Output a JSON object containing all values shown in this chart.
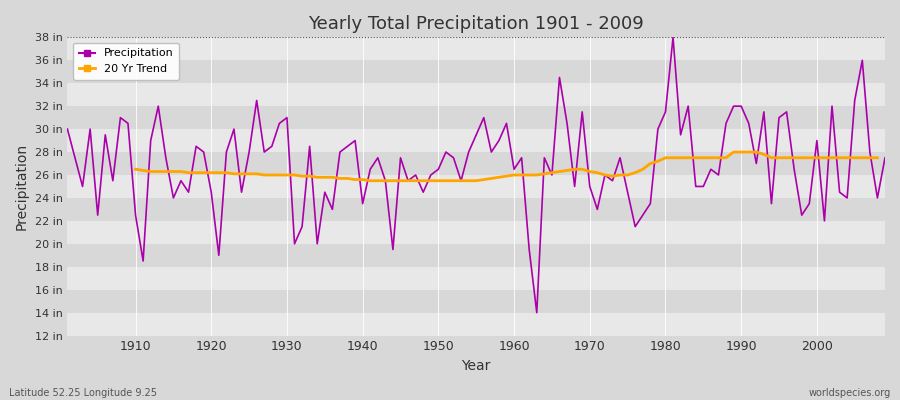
{
  "title": "Yearly Total Precipitation 1901 - 2009",
  "xlabel": "Year",
  "ylabel": "Precipitation",
  "fig_bg_color": "#d8d8d8",
  "plot_bg_color": "#e0e0e0",
  "band_color_light": "#e8e8e8",
  "band_color_dark": "#d8d8d8",
  "precip_color": "#aa00aa",
  "trend_color": "#FFA500",
  "ylim": [
    12,
    38
  ],
  "yticks": [
    12,
    14,
    16,
    18,
    20,
    22,
    24,
    26,
    28,
    30,
    32,
    34,
    36,
    38
  ],
  "ytick_labels": [
    "12 in",
    "14 in",
    "16 in",
    "18 in",
    "20 in",
    "22 in",
    "24 in",
    "26 in",
    "28 in",
    "30 in",
    "32 in",
    "34 in",
    "36 in",
    "38 in"
  ],
  "xticks": [
    1910,
    1920,
    1930,
    1940,
    1950,
    1960,
    1970,
    1980,
    1990,
    2000
  ],
  "footer_left": "Latitude 52.25 Longitude 9.25",
  "footer_right": "worldspecies.org",
  "years": [
    1901,
    1902,
    1903,
    1904,
    1905,
    1906,
    1907,
    1908,
    1909,
    1910,
    1911,
    1912,
    1913,
    1914,
    1915,
    1916,
    1917,
    1918,
    1919,
    1920,
    1921,
    1922,
    1923,
    1924,
    1925,
    1926,
    1927,
    1928,
    1929,
    1930,
    1931,
    1932,
    1933,
    1934,
    1935,
    1936,
    1937,
    1938,
    1939,
    1940,
    1941,
    1942,
    1943,
    1944,
    1945,
    1946,
    1947,
    1948,
    1949,
    1950,
    1951,
    1952,
    1953,
    1954,
    1955,
    1956,
    1957,
    1958,
    1959,
    1960,
    1961,
    1962,
    1963,
    1964,
    1965,
    1966,
    1967,
    1968,
    1969,
    1970,
    1971,
    1972,
    1973,
    1974,
    1975,
    1976,
    1977,
    1978,
    1979,
    1980,
    1981,
    1982,
    1983,
    1984,
    1985,
    1986,
    1987,
    1988,
    1989,
    1990,
    1991,
    1992,
    1993,
    1994,
    1995,
    1996,
    1997,
    1998,
    1999,
    2000,
    2001,
    2002,
    2003,
    2004,
    2005,
    2006,
    2007,
    2008,
    2009
  ],
  "precipitation": [
    30.0,
    27.5,
    25.0,
    30.0,
    22.5,
    29.5,
    25.5,
    31.0,
    30.5,
    22.5,
    18.5,
    29.0,
    32.0,
    27.5,
    24.0,
    25.5,
    24.5,
    28.5,
    28.0,
    24.5,
    19.0,
    28.0,
    30.0,
    24.5,
    28.0,
    32.5,
    28.0,
    28.5,
    30.5,
    31.0,
    20.0,
    21.5,
    28.5,
    20.0,
    24.5,
    23.0,
    28.0,
    28.5,
    29.0,
    23.5,
    26.5,
    27.5,
    25.5,
    19.5,
    27.5,
    25.5,
    26.0,
    24.5,
    26.0,
    26.5,
    28.0,
    27.5,
    25.5,
    28.0,
    29.5,
    31.0,
    28.0,
    29.0,
    30.5,
    26.5,
    27.5,
    19.5,
    14.0,
    27.5,
    26.0,
    34.5,
    30.5,
    25.0,
    31.5,
    25.0,
    23.0,
    26.0,
    25.5,
    27.5,
    24.5,
    21.5,
    22.5,
    23.5,
    30.0,
    31.5,
    38.0,
    29.5,
    32.0,
    25.0,
    25.0,
    26.5,
    26.0,
    30.5,
    32.0,
    32.0,
    30.5,
    27.0,
    31.5,
    23.5,
    31.0,
    31.5,
    26.5,
    22.5,
    23.5,
    29.0,
    22.0,
    32.0,
    24.5,
    24.0,
    32.5,
    36.0,
    28.0,
    24.0,
    27.5
  ],
  "trend": [
    null,
    null,
    null,
    null,
    null,
    null,
    null,
    null,
    null,
    26.5,
    26.4,
    26.3,
    26.3,
    26.3,
    26.3,
    26.3,
    26.2,
    26.2,
    26.2,
    26.2,
    26.2,
    26.2,
    26.1,
    26.1,
    26.1,
    26.1,
    26.0,
    26.0,
    26.0,
    26.0,
    26.0,
    25.9,
    25.9,
    25.8,
    25.8,
    25.8,
    25.7,
    25.7,
    25.6,
    25.6,
    25.5,
    25.5,
    25.5,
    25.5,
    25.5,
    25.5,
    25.5,
    25.5,
    25.5,
    25.5,
    25.5,
    25.5,
    25.5,
    25.5,
    25.5,
    25.6,
    25.7,
    25.8,
    25.9,
    26.0,
    26.0,
    26.0,
    26.0,
    26.1,
    26.2,
    26.3,
    26.4,
    26.5,
    26.5,
    26.3,
    26.2,
    26.0,
    25.9,
    26.0,
    26.0,
    26.2,
    26.5,
    27.0,
    27.2,
    27.5,
    27.5,
    27.5,
    27.5,
    27.5,
    27.5,
    27.5,
    27.5,
    27.5,
    28.0,
    28.0,
    28.0,
    28.0,
    27.8,
    27.5,
    27.5,
    27.5,
    27.5,
    27.5,
    27.5,
    27.5,
    27.5,
    27.5,
    27.5,
    27.5,
    27.5,
    27.5,
    27.5,
    27.5,
    null
  ]
}
